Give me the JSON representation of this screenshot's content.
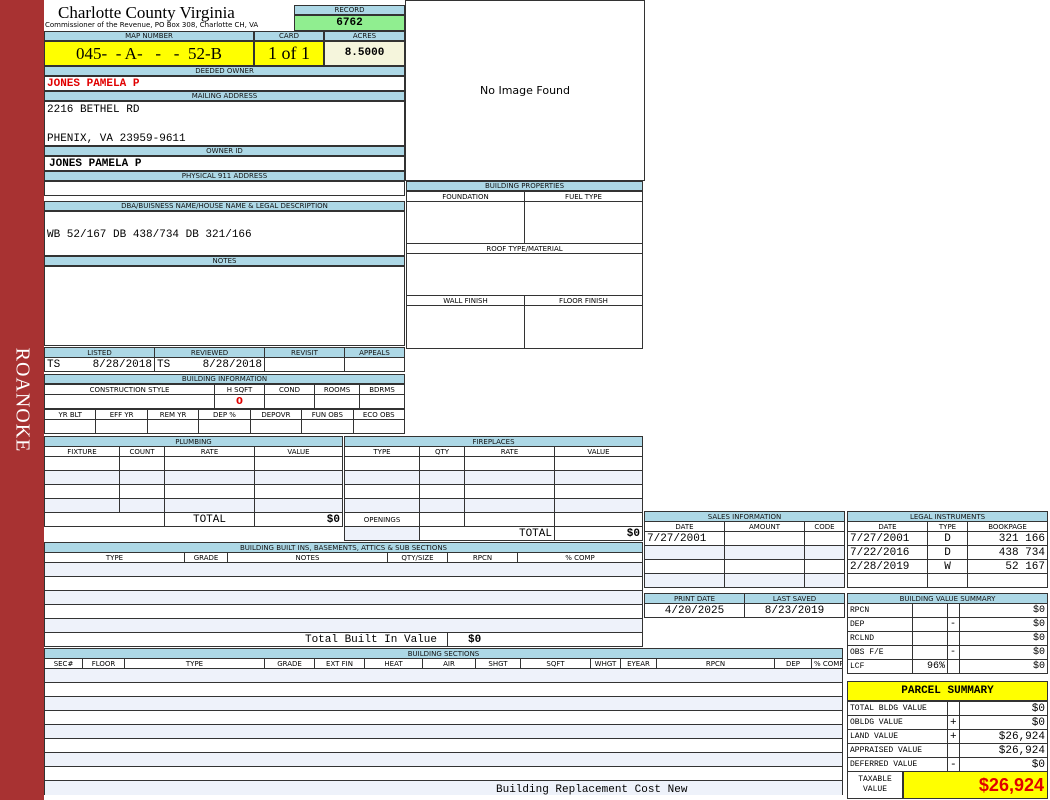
{
  "sidebar": {
    "label": "ROANOKE",
    "color": "#a83232"
  },
  "header": {
    "title": "Charlotte County Virginia",
    "subtitle": "Commissioner of the Revenue, PO Box 308, Charlotte CH, VA"
  },
  "record": {
    "label": "RECORD",
    "value": "6762"
  },
  "map": {
    "label": "MAP NUMBER",
    "value": "045-  - A-   -   -  52-B",
    "card_label": "CARD",
    "card": "1 of 1",
    "acres_label": "ACRES",
    "acres": "8.5000"
  },
  "owner": {
    "deeded_label": "DEEDED OWNER",
    "deeded": "JONES PAMELA P",
    "mailing_label": "MAILING ADDRESS",
    "mailing_line1": "2216 BETHEL RD",
    "mailing_line2": "PHENIX, VA 23959-9611",
    "owner_id_label": "OWNER ID",
    "owner_id": "JONES PAMELA P",
    "physical_label": "PHYSICAL 911 ADDRESS"
  },
  "image": {
    "text": "No Image Found"
  },
  "legal": {
    "label": "DBA/BUISNESS NAME/HOUSE NAME & LEGAL DESCRIPTION",
    "value": "WB 52/167 DB 438/734 DB 321/166",
    "notes_label": "NOTES"
  },
  "bldg_props": {
    "label": "BUILDING PROPERTIES",
    "foundation": "FOUNDATION",
    "fuel": "FUEL TYPE",
    "roof": "ROOF TYPE/MATERIAL",
    "wall": "WALL FINISH",
    "floor": "FLOOR FINISH"
  },
  "review": {
    "listed_label": "LISTED",
    "listed_by": "TS",
    "listed_date": "8/28/2018",
    "reviewed_label": "REVIEWED",
    "reviewed_by": "TS",
    "reviewed_date": "8/28/2018",
    "revisit_label": "REVISIT",
    "appeals_label": "APPEALS"
  },
  "bldg_info": {
    "label": "BUILDING INFORMATION",
    "cols1": [
      "CONSTRUCTION STYLE",
      "H SQFT",
      "COND",
      "ROOMS",
      "BDRMS"
    ],
    "hsqft": "0",
    "cols2": [
      "YR BLT",
      "EFF YR",
      "REM YR",
      "DEP %",
      "DEPOVR",
      "FUN OBS",
      "ECO OBS"
    ]
  },
  "plumbing": {
    "label": "PLUMBING",
    "cols": [
      "FIXTURE",
      "COUNT",
      "RATE",
      "VALUE"
    ],
    "total_label": "TOTAL",
    "total": "$0"
  },
  "fireplaces": {
    "label": "FIREPLACES",
    "cols": [
      "TYPE",
      "QTY",
      "RATE",
      "VALUE"
    ],
    "openings": "OPENINGS",
    "total_label": "TOTAL",
    "total": "$0"
  },
  "builtins": {
    "label": "BUILDING BUILT INS, BASEMENTS, ATTICS & SUB SECTIONS",
    "cols": [
      "TYPE",
      "GRADE",
      "NOTES",
      "QTY/SIZE",
      "RPCN",
      "% COMP"
    ],
    "total_label": "Total Built In Value",
    "total": "$0"
  },
  "sections": {
    "label": "BUILDING SECTIONS",
    "cols": [
      "SEC#",
      "FLOOR",
      "TYPE",
      "GRADE",
      "EXT FIN",
      "HEAT",
      "AIR",
      "SHGT",
      "SQFT",
      "WHGT",
      "EYEAR",
      "RPCN",
      "DEP",
      "% COMP"
    ],
    "footer": "Building Replacement Cost New"
  },
  "sales": {
    "label": "SALES INFORMATION",
    "cols": [
      "DATE",
      "AMOUNT",
      "CODE"
    ],
    "rows": [
      [
        "7/27/2001",
        "",
        ""
      ],
      [
        "",
        "",
        ""
      ],
      [
        "",
        "",
        ""
      ],
      [
        "",
        "",
        ""
      ]
    ]
  },
  "dates": {
    "print_label": "PRINT DATE",
    "print": "4/20/2025",
    "saved_label": "LAST SAVED",
    "saved": "8/23/2019"
  },
  "instruments": {
    "label": "LEGAL INSTRUMENTS",
    "cols": [
      "DATE",
      "TYPE",
      "BOOKPAGE"
    ],
    "rows": [
      [
        "7/27/2001",
        "D",
        "321 166"
      ],
      [
        "7/22/2016",
        "D",
        "438 734"
      ],
      [
        "2/28/2019",
        "W",
        "52 167"
      ],
      [
        "",
        "",
        ""
      ]
    ]
  },
  "bvs": {
    "label": "BUILDING VALUE SUMMARY",
    "rows": [
      [
        "RPCN",
        "",
        "",
        "$0"
      ],
      [
        "DEP",
        "",
        "-",
        "$0"
      ],
      [
        "RCLND",
        "",
        "",
        "$0"
      ],
      [
        "OBS F/E",
        "",
        "-",
        "$0"
      ],
      [
        "LCF",
        "96%",
        "",
        "$0"
      ]
    ]
  },
  "parcel": {
    "label": "PARCEL SUMMARY",
    "rows": [
      [
        "TOTAL BLDG VALUE",
        "",
        "$0"
      ],
      [
        "OBLDG VALUE",
        "+",
        "$0"
      ],
      [
        "LAND VALUE",
        "+",
        "$26,924"
      ],
      [
        "APPRAISED VALUE",
        "",
        "$26,924"
      ],
      [
        "DEFERRED VALUE",
        "-",
        "$0"
      ]
    ],
    "taxable_label": "TAXABLE VALUE",
    "taxable": "$26,924"
  },
  "colors": {
    "header_blue": "#add8e6",
    "yellow": "#ffff00",
    "green": "#90ee90",
    "red": "#e00000"
  }
}
